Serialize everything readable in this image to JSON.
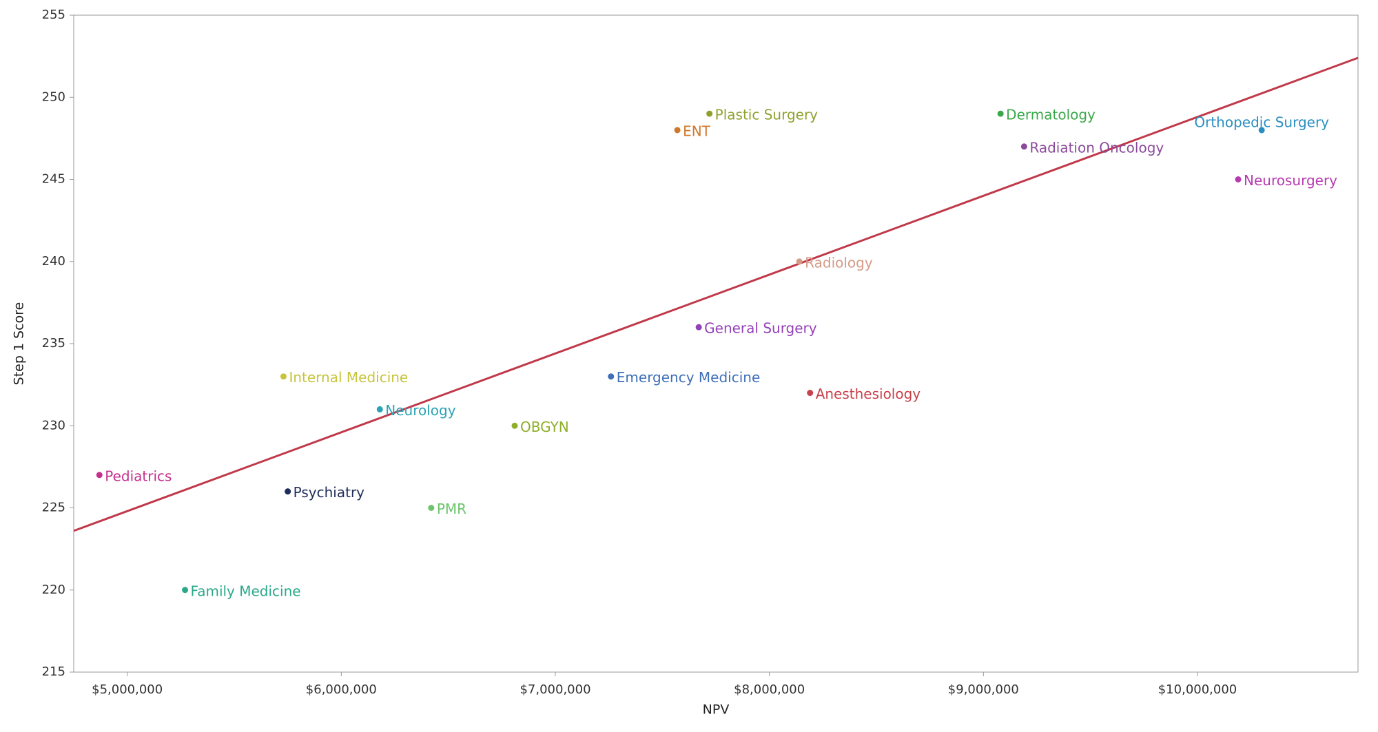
{
  "chart_data": {
    "type": "scatter",
    "x_label": "NPV",
    "y_label": "Step 1 Score",
    "labels": [
      "Pediatrics",
      "Family Medicine",
      "Internal Medicine",
      "Psychiatry",
      "Neurology",
      "PMR",
      "OBGYN",
      "Emergency Medicine",
      "ENT",
      "General Surgery",
      "Plastic Surgery",
      "Radiology",
      "Anesthesiology",
      "Dermatology",
      "Radiation Oncology",
      "Orthopedic Surgery",
      "Neurosurgery"
    ],
    "x": [
      4870000,
      5270000,
      5730000,
      5750000,
      6180000,
      6420000,
      6810000,
      7260000,
      7570000,
      7670000,
      7720000,
      8140000,
      8190000,
      9080000,
      9190000,
      10300000,
      10190000
    ],
    "values": [
      227,
      220,
      233,
      226,
      231,
      225,
      230,
      233,
      248,
      236,
      249,
      240,
      232,
      249,
      247,
      248,
      245
    ],
    "colors": [
      "#c4308f",
      "#2aa88a",
      "#c7c43a",
      "#1f2d5a",
      "#2aa3b5",
      "#6cc46c",
      "#8fae2a",
      "#3e6fb8",
      "#d0772a",
      "#9440b8",
      "#8fa02e",
      "#d49a86",
      "#c8414b",
      "#3aa84a",
      "#8a4a9a",
      "#2a8fc0",
      "#b83ab0"
    ],
    "trendline": {
      "x": [
        4750000,
        10750000
      ],
      "values": [
        223.6,
        252.4
      ],
      "color": "#c0394a"
    },
    "xlim": [
      4750000,
      10750000
    ],
    "ylim": [
      215,
      255
    ],
    "xticks": [
      {
        "value": 5000000,
        "label": "$5,000,000"
      },
      {
        "value": 6000000,
        "label": "$6,000,000"
      },
      {
        "value": 7000000,
        "label": "$7,000,000"
      },
      {
        "value": 8000000,
        "label": "$8,000,000"
      },
      {
        "value": 9000000,
        "label": "$9,000,000"
      },
      {
        "value": 10000000,
        "label": "$10,000,000"
      }
    ],
    "yticks": [
      215,
      220,
      225,
      230,
      235,
      240,
      245,
      250,
      255
    ],
    "grid": false
  }
}
